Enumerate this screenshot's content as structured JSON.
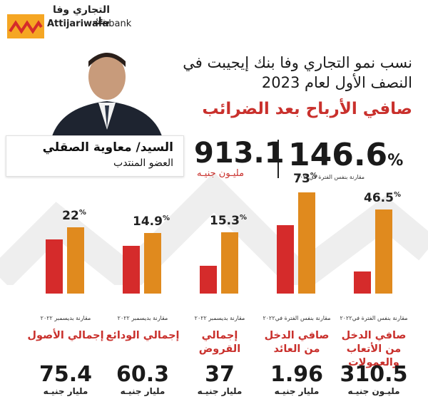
{
  "brand": {
    "arabic": "التجاري وفا بنك",
    "latin_bold": "Attijariwafa",
    "latin_light": "bank",
    "colors": {
      "yellow": "#f5a623",
      "red": "#d52b2b",
      "orange": "#e08a1e"
    }
  },
  "executive": {
    "name": "السيد/ معاوية الصقلي",
    "role": "العضو المنتدب"
  },
  "headline": {
    "line1": "نسب نمو التجاري وفا بنك إيجيبت  في",
    "line2": "النصف الأول لعام 2023"
  },
  "net_profit": {
    "title": "صافي الأرباح بعد الضرائب",
    "growth": "146.6",
    "growth_sign": "%",
    "growth_note": "مقارنة بنفس الفترة في٢٠٢٢",
    "value": "913.1",
    "unit": "مليـون جنيـه"
  },
  "chart_data": {
    "type": "bar",
    "categories": [
      "صافي الدخل من الأتعاب والعمولات",
      "صافي الدخل من العائد",
      "إجمالي القروض",
      "إجمالي الودائع",
      "إجمالي الأصول"
    ],
    "growth_pct": [
      46.5,
      73,
      15.3,
      14.9,
      22
    ],
    "growth_labels": [
      "46.5",
      "73",
      "15.3",
      "14.9",
      "22"
    ],
    "comparison_notes": [
      "مقارنة بنفس الفترة في٢٠٢٢",
      "مقارنة بنفس الفترة في٢٠٢٢",
      "مقارنة بديسمبر ٢٠٢٢",
      "مقارنة بديسمبر ٢٠٢٢",
      "مقارنة بديسمبر ٢٠٢٢"
    ],
    "values": [
      "310.5",
      "1.96",
      "37",
      "60.3",
      "75.4"
    ],
    "units": [
      "مليـون جنيـه",
      "مليار جنيـه",
      "مليار جنيـه",
      "مليار جنيـه",
      "مليار جنيـه"
    ],
    "series_colors": {
      "previous": "#d52b2b",
      "current": "#e08a1e"
    }
  }
}
